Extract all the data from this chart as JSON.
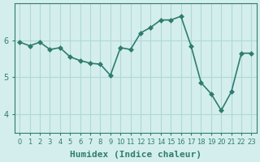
{
  "x": [
    0,
    1,
    2,
    3,
    4,
    5,
    6,
    7,
    8,
    9,
    10,
    11,
    12,
    13,
    14,
    15,
    16,
    17,
    18,
    19,
    20,
    21,
    22,
    23
  ],
  "y": [
    5.95,
    5.85,
    5.95,
    5.75,
    5.8,
    5.55,
    5.45,
    5.38,
    5.35,
    5.05,
    5.8,
    5.75,
    6.2,
    6.35,
    6.55,
    6.55,
    6.65,
    5.85,
    4.85,
    4.55,
    4.1,
    4.6,
    5.65,
    5.65
  ],
  "line_color": "#2e7d6e",
  "marker_color": "#2e7d6e",
  "bg_color": "#d4eeee",
  "grid_color": "#b0d8d8",
  "axis_color": "#2e7d6e",
  "xlabel": "Humidex (Indice chaleur)",
  "xlabel_fontsize": 8,
  "tick_fontsize": 7,
  "ylim": [
    3.5,
    7.0
  ],
  "yticks": [
    4,
    5,
    6
  ],
  "xlim": [
    -0.5,
    23.5
  ],
  "marker_size": 3,
  "line_width": 1.2
}
